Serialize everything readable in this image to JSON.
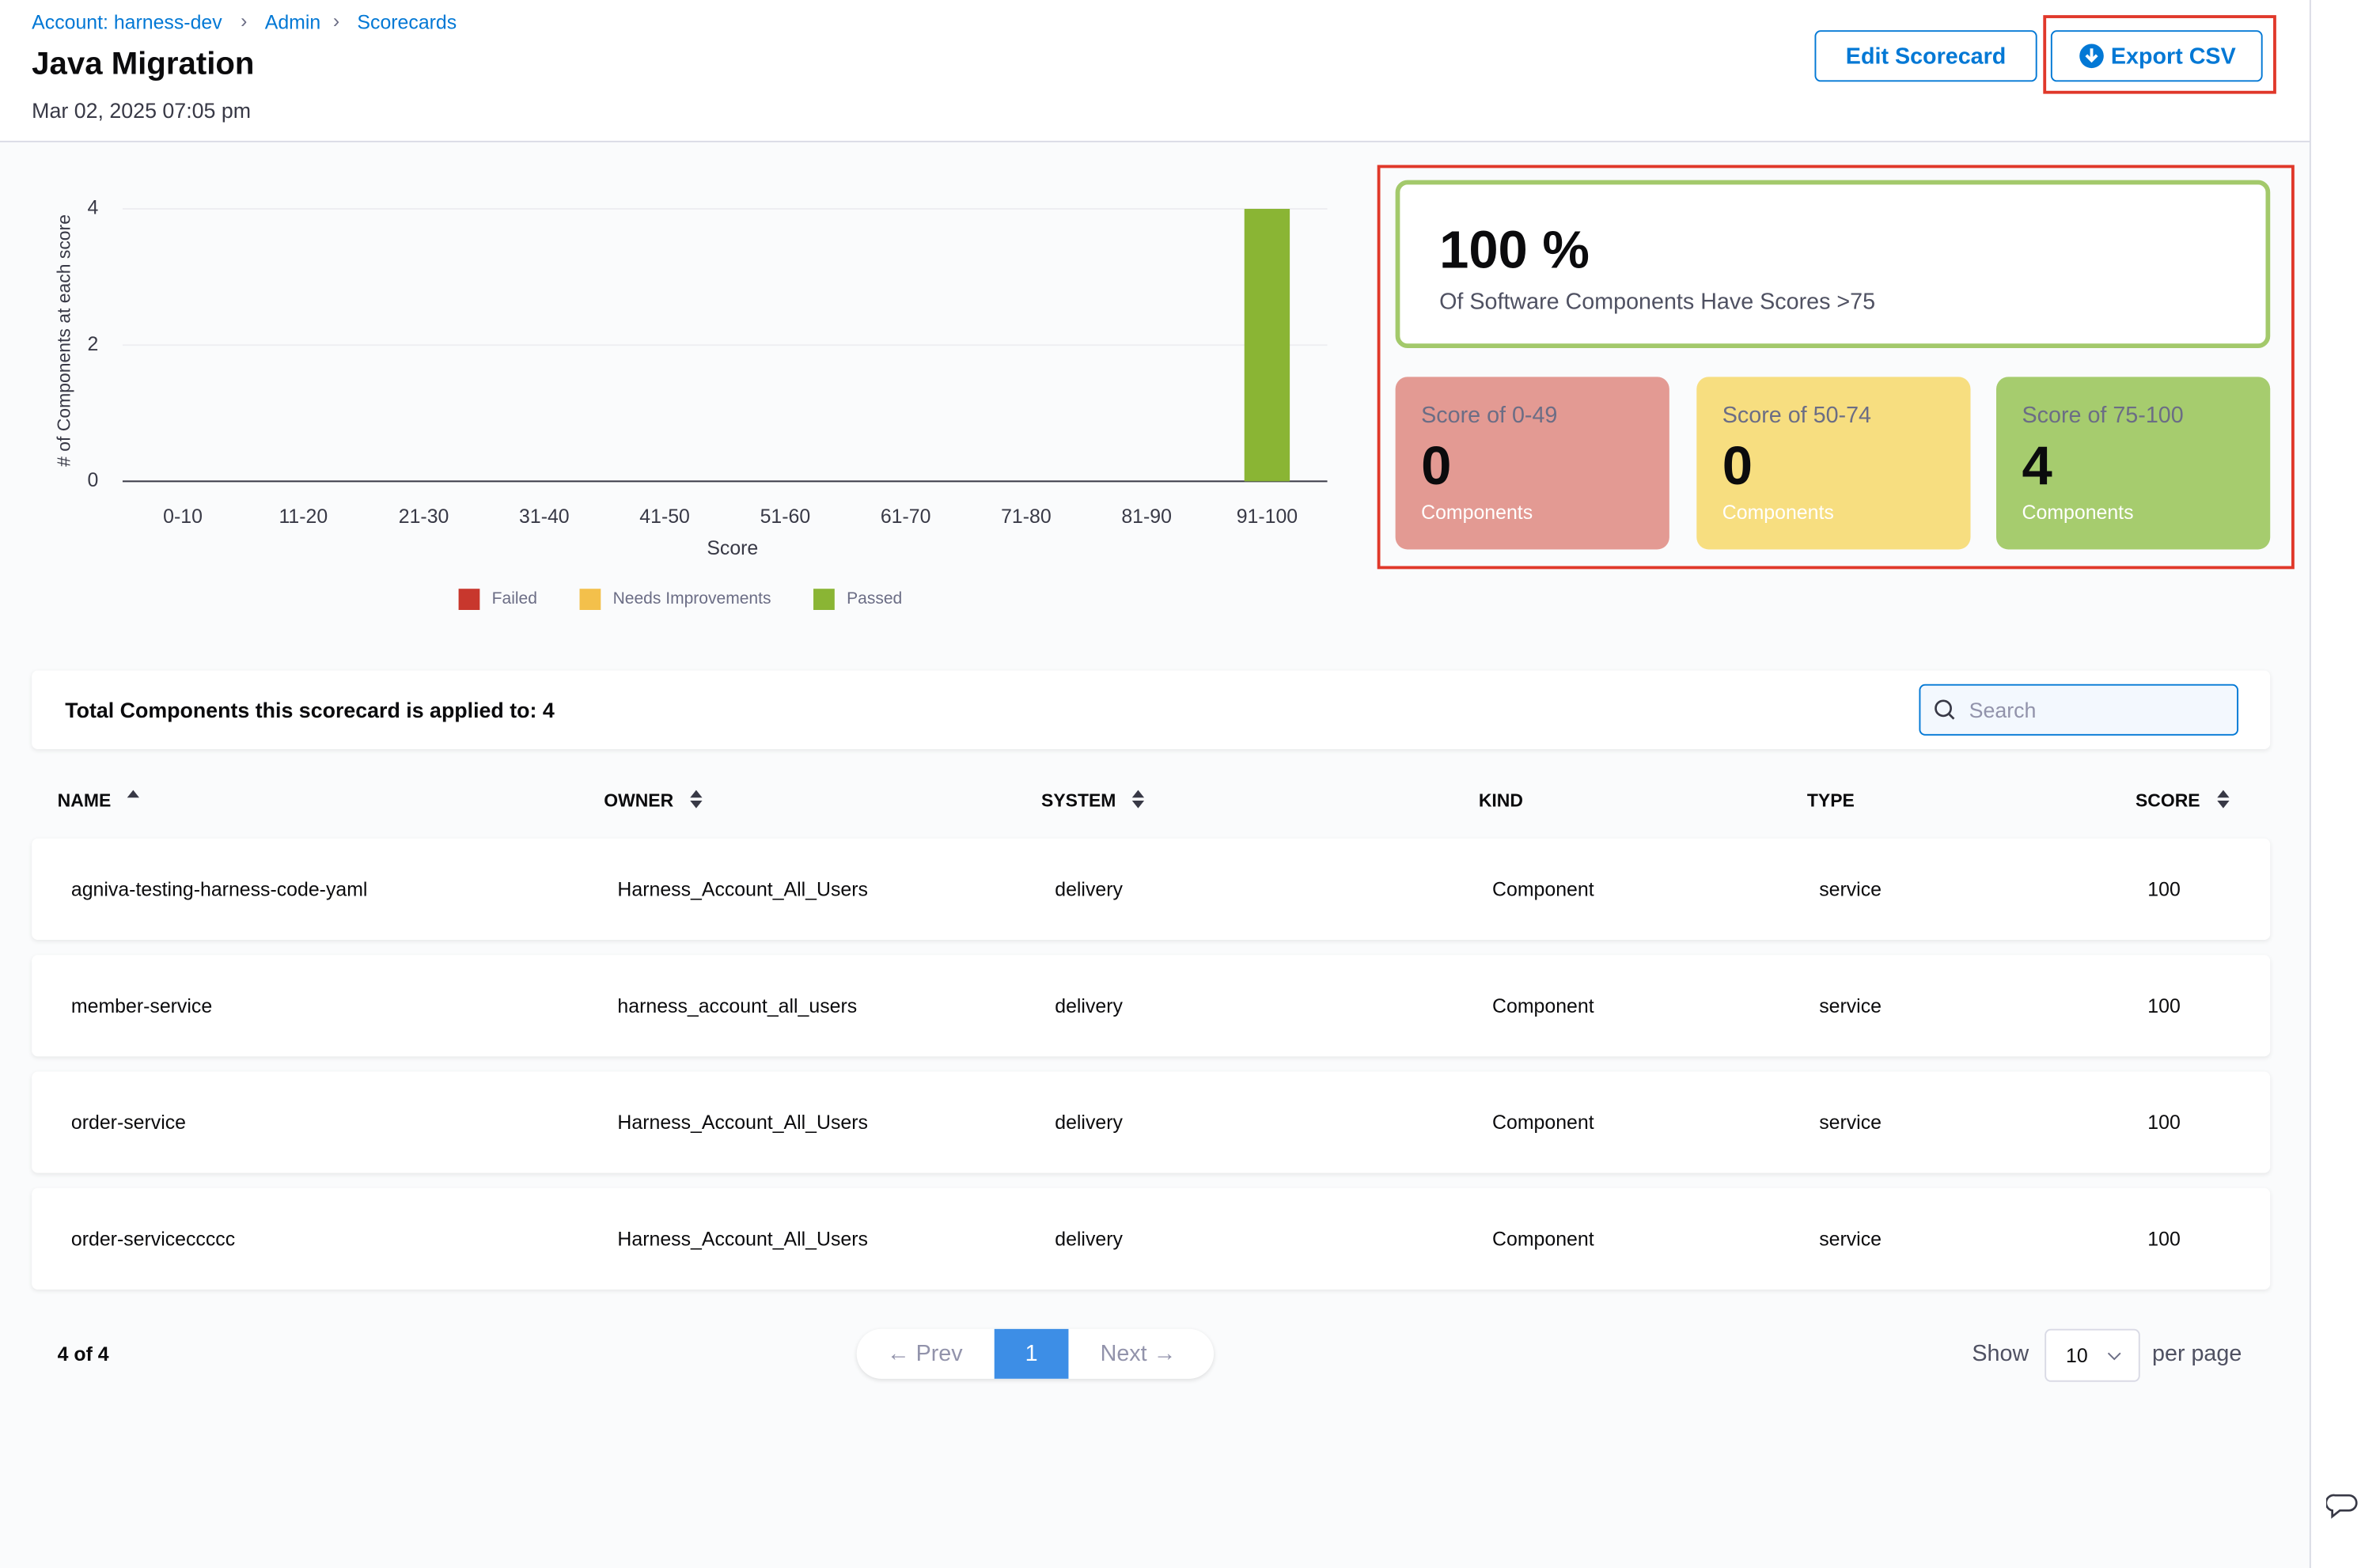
{
  "breadcrumbs": [
    "Account: harness-dev",
    "Admin",
    "Scorecards"
  ],
  "header": {
    "title": "Java Migration",
    "date": "Mar 02, 2025 07:05 pm",
    "buttons": [
      "Edit Scorecard",
      "Export CSV"
    ]
  },
  "chart_data": {
    "type": "bar",
    "stacked": true,
    "x_label": "Score",
    "y_label": "# of Components at each score",
    "categories": [
      "0-10",
      "11-20",
      "21-30",
      "31-40",
      "41-50",
      "51-60",
      "61-70",
      "71-80",
      "81-90",
      "91-100"
    ],
    "series": [
      {
        "name": "Failed",
        "color": "#c8372d",
        "values": [
          0,
          0,
          0,
          0,
          0,
          0,
          0,
          0,
          0,
          0
        ]
      },
      {
        "name": "Needs Improvements",
        "color": "#f3c04b",
        "values": [
          0,
          0,
          0,
          0,
          0,
          0,
          0,
          0,
          0,
          0
        ]
      },
      {
        "name": "Passed",
        "color": "#8ab534",
        "values": [
          0,
          0,
          0,
          0,
          0,
          0,
          0,
          0,
          0,
          4
        ]
      }
    ],
    "ylim": [
      0,
      4
    ],
    "yticks": [
      0,
      2,
      4
    ],
    "grid": true
  },
  "summary": {
    "headline": "100 %",
    "text": "Of Software Components Have Scores >75"
  },
  "score_cards": [
    {
      "label": "Score of 0-49",
      "count": 0,
      "unit": "Components"
    },
    {
      "label": "Score of 50-74",
      "count": 0,
      "unit": "Components"
    },
    {
      "label": "Score of 75-100",
      "count": 4,
      "unit": "Components"
    }
  ],
  "table": {
    "caption": "Total Components this scorecard is applied to: 4",
    "search_placeholder": "Search",
    "columns": [
      "NAME",
      "OWNER",
      "SYSTEM",
      "KIND",
      "TYPE",
      "SCORE"
    ],
    "rows": [
      [
        "agniva-testing-harness-code-yaml",
        "Harness_Account_All_Users",
        "delivery",
        "Component",
        "service",
        100
      ],
      [
        "member-service",
        "harness_account_all_users",
        "delivery",
        "Component",
        "service",
        100
      ],
      [
        "order-service",
        "Harness_Account_All_Users",
        "delivery",
        "Component",
        "service",
        100
      ],
      [
        "order-serviceccccc",
        "Harness_Account_All_Users",
        "delivery",
        "Component",
        "service",
        100
      ]
    ]
  },
  "pagination": {
    "summary": "4 of 4",
    "prev": "← Prev",
    "page": 1,
    "next": "Next →",
    "show": "Show",
    "page_size": 10,
    "per_page": "per page"
  }
}
